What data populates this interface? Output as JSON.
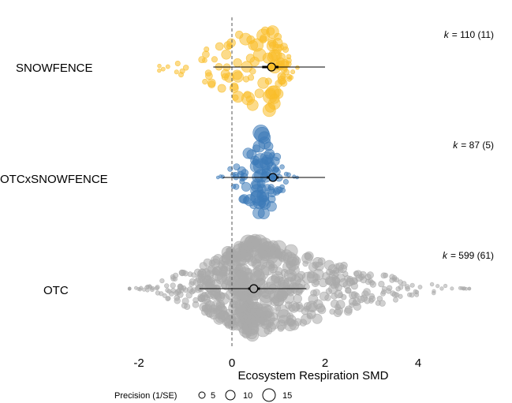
{
  "chart_data": {
    "type": "scatter",
    "title": "",
    "xlabel": "Ecosystem Respiration SMD",
    "ylabel": "",
    "xlim": [
      -2.5,
      5.6
    ],
    "x_ticks": [
      -2,
      0,
      2,
      4
    ],
    "x_tick_labels": [
      "-2",
      "0",
      "2",
      "4"
    ],
    "reference_line_x": 0,
    "grid": false,
    "series": [
      {
        "name": "SNOWFENCE",
        "color": "#F9BE2A",
        "k_label": "k = 110 (11)",
        "k_prefix": "k",
        "k_value": "= 110 (11)",
        "n_points": 110,
        "estimate": 0.85,
        "ci_thick": [
          0.65,
          1.0
        ],
        "ci_thin": [
          -0.4,
          2.0
        ],
        "x_range": [
          -2.0,
          1.5
        ],
        "center": 0.8
      },
      {
        "name": "OTCxSNOWFENCE",
        "color": "#3D7AB8",
        "k_label": "k = 87 (5)",
        "k_prefix": "k",
        "k_value": "= 87 (5)",
        "n_points": 87,
        "estimate": 0.88,
        "ci_thick": [
          0.75,
          1.0
        ],
        "ci_thin": [
          -0.2,
          2.0
        ],
        "x_range": [
          -0.3,
          1.4
        ],
        "center": 0.6
      },
      {
        "name": "OTC",
        "color": "#AAAAAA",
        "k_label": "k = 599 (61)",
        "k_prefix": "k",
        "k_value": "= 599 (61)",
        "n_points": 599,
        "estimate": 0.47,
        "ci_thick": [
          0.35,
          0.6
        ],
        "ci_thin": [
          -0.7,
          1.6
        ],
        "x_range": [
          -2.2,
          5.1
        ],
        "center": 0.45
      }
    ],
    "legend": {
      "title": "Precision (1/SE)",
      "items": [
        "5",
        "10",
        "15"
      ],
      "placement": "bottom"
    }
  }
}
